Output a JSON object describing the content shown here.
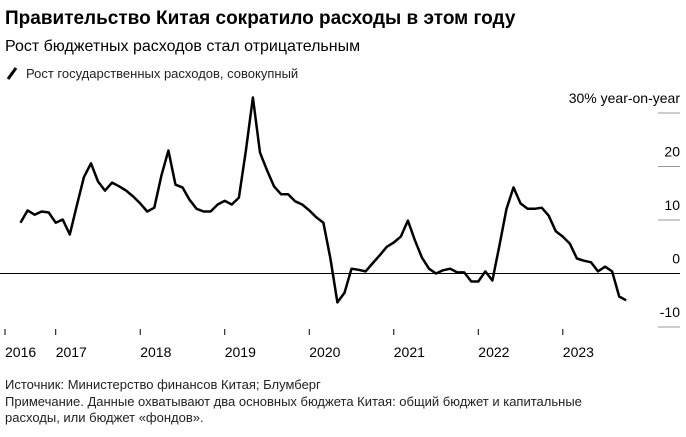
{
  "chart_data": {
    "type": "line",
    "title": "Правительство Китая сократило расходы в этом году",
    "subtitle": "Рост бюджетных расходов стал отрицательным",
    "notes": [
      "Источник: Министерство финансов Китая; Блумберг",
      "Примечание. Данные охватывают два основных бюджета Китая: общий бюджет и капитальные",
      "расходы, или бюджет «фондов»."
    ],
    "xlim": [
      2016.4,
      2024.15
    ],
    "xticks": [
      {
        "value": 2016.4,
        "label": "2016"
      },
      2017,
      2018,
      2019,
      2020,
      2021,
      2022,
      2023
    ],
    "ylim": [
      -10,
      33
    ],
    "yticks": [
      {
        "value": 30,
        "label": "30% year-on-year"
      },
      20,
      10,
      0,
      -10
    ],
    "x": [
      2016.583,
      2016.667,
      2016.75,
      2016.833,
      2016.917,
      2017.0,
      2017.083,
      2017.167,
      2017.25,
      2017.333,
      2017.417,
      2017.5,
      2017.583,
      2017.667,
      2017.75,
      2017.833,
      2017.917,
      2018.0,
      2018.083,
      2018.167,
      2018.25,
      2018.333,
      2018.417,
      2018.5,
      2018.583,
      2018.667,
      2018.75,
      2018.833,
      2018.917,
      2019.0,
      2019.083,
      2019.167,
      2019.25,
      2019.333,
      2019.417,
      2019.5,
      2019.583,
      2019.667,
      2019.75,
      2019.833,
      2019.917,
      2020.0,
      2020.083,
      2020.167,
      2020.25,
      2020.333,
      2020.417,
      2020.5,
      2020.583,
      2020.667,
      2020.75,
      2020.833,
      2020.917,
      2021.0,
      2021.083,
      2021.167,
      2021.25,
      2021.333,
      2021.417,
      2021.5,
      2021.583,
      2021.667,
      2021.75,
      2021.833,
      2021.917,
      2022.0,
      2022.083,
      2022.167,
      2022.25,
      2022.333,
      2022.417,
      2022.5,
      2022.583,
      2022.667,
      2022.75,
      2022.833,
      2022.917,
      2023.0,
      2023.083,
      2023.167,
      2023.25,
      2023.333,
      2023.417,
      2023.5,
      2023.583,
      2023.667,
      2023.75
    ],
    "series": [
      {
        "name": "Рост государственных расходов, совокупный",
        "color": "#000000",
        "values": [
          9.5,
          11.8,
          11,
          11.6,
          11.4,
          9.5,
          10.1,
          7.3,
          12.7,
          18,
          20.6,
          17.2,
          15.5,
          17,
          16.3,
          15.5,
          14.4,
          13.1,
          11.6,
          12.3,
          18.3,
          23,
          16.6,
          16.1,
          13.8,
          12.1,
          11.6,
          11.6,
          12.9,
          13.6,
          12.9,
          14.2,
          23,
          32.9,
          22.6,
          19.3,
          16.3,
          14.8,
          14.8,
          13.5,
          12.9,
          11.8,
          10.5,
          9.5,
          2.8,
          -5.4,
          -3.6,
          0.9,
          0.7,
          0.4,
          1.9,
          3.4,
          5,
          5.8,
          6.9,
          9.9,
          6.2,
          3,
          0.9,
          0,
          0.6,
          0.9,
          0.2,
          0.2,
          -1.5,
          -1.5,
          0.4,
          -1.3,
          5.2,
          12,
          16.1,
          13.1,
          12.1,
          12.1,
          12.3,
          10.8,
          7.9,
          6.9,
          5.6,
          2.8,
          2.4,
          2.1,
          0.4,
          1.3,
          0.4,
          -4.3,
          -5.0
        ]
      }
    ]
  }
}
